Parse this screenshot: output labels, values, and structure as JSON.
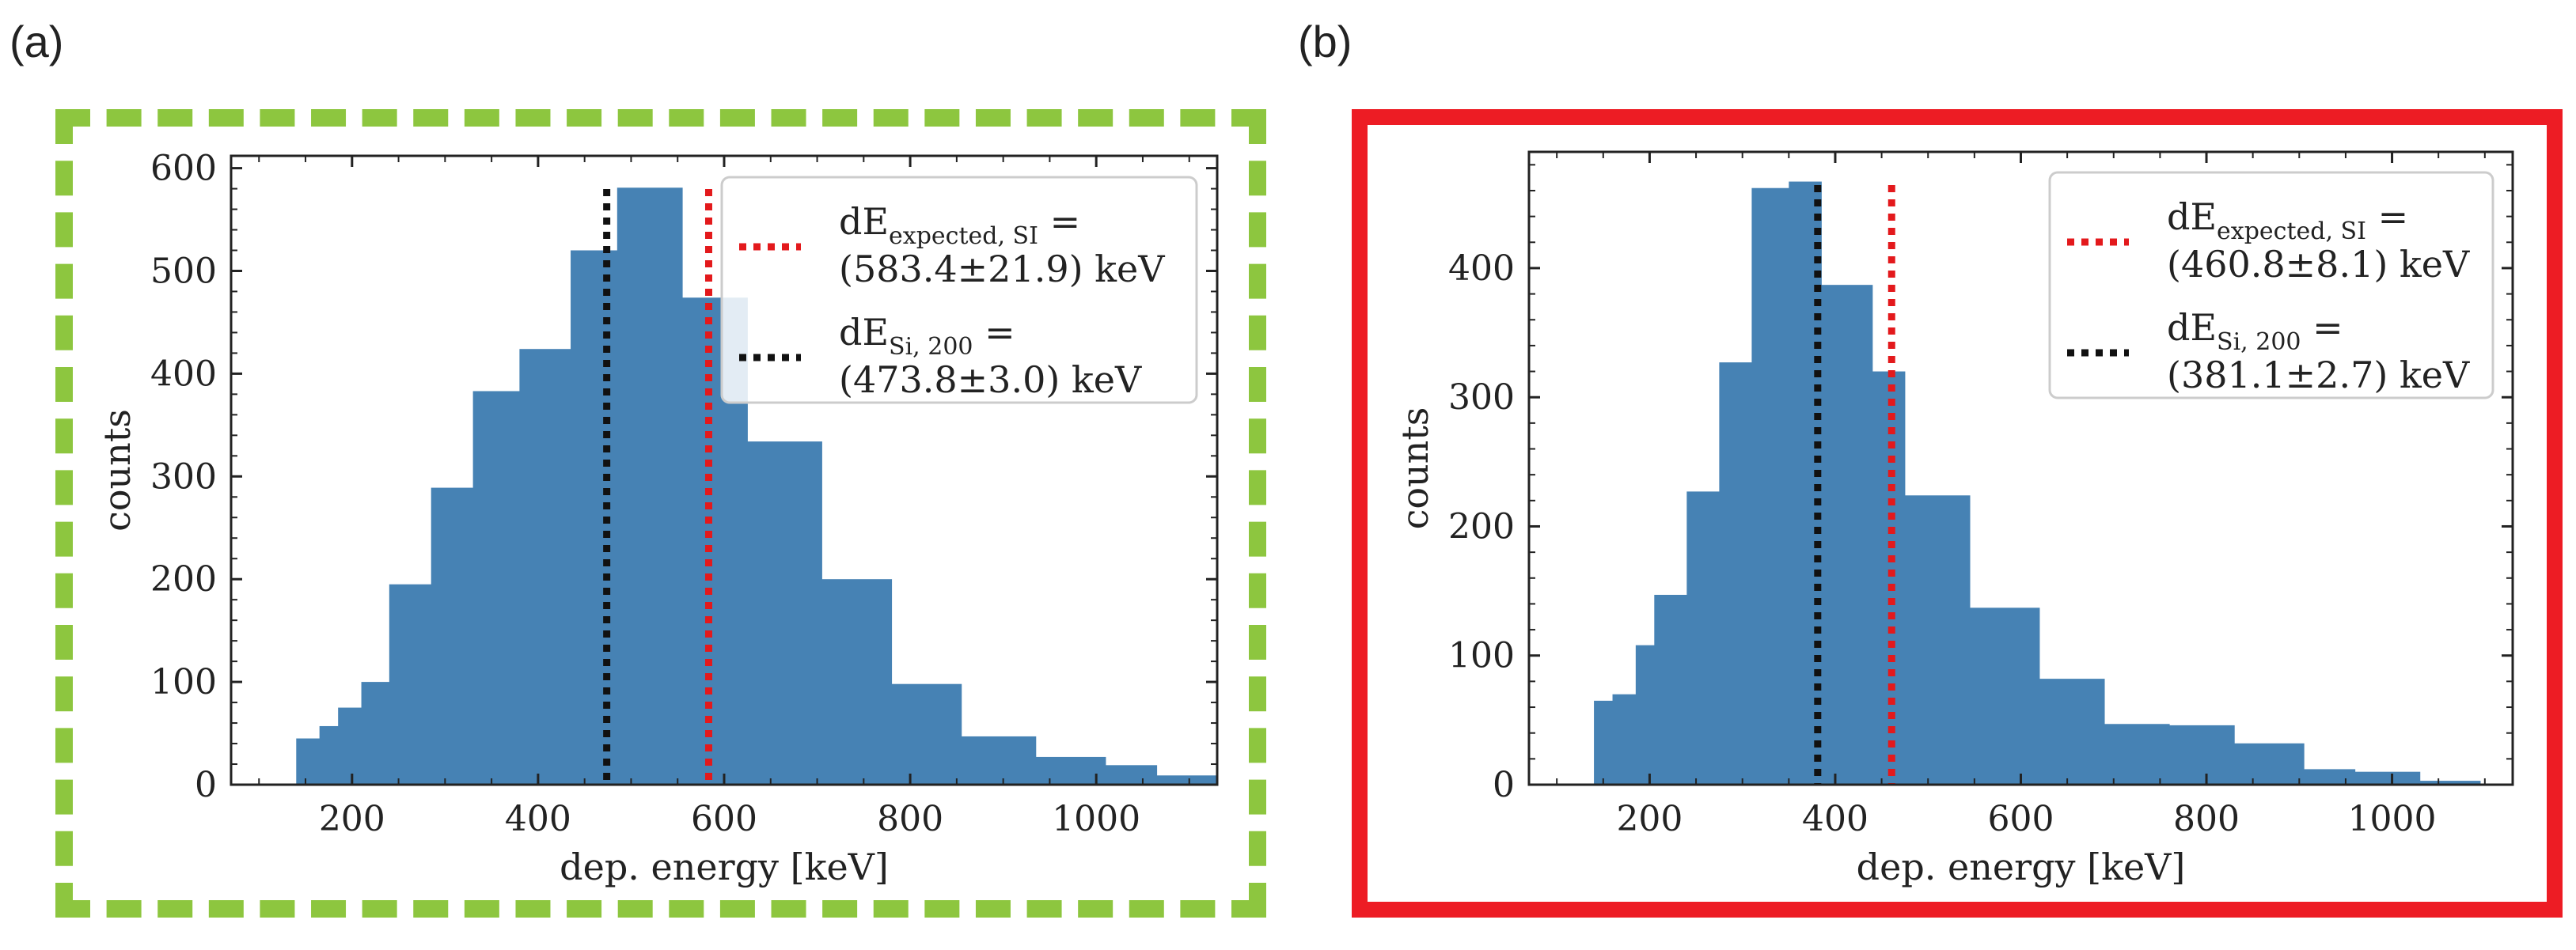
{
  "panels": [
    {
      "label": "(a)",
      "frame_color": "#8dc63f",
      "frame_style": "dashed"
    },
    {
      "label": "(b)",
      "frame_color": "#ed1c24",
      "frame_style": "solid"
    }
  ],
  "colors": {
    "bar": "#4682b4",
    "expected_line": "#e3191c",
    "si_line": "#111111"
  },
  "chart_data": [
    {
      "type": "bar",
      "xlabel": "dep. energy [keV]",
      "ylabel": "counts",
      "xlim": [
        70,
        1130
      ],
      "ylim": [
        0,
        612
      ],
      "xticks": [
        200,
        400,
        600,
        800,
        1000
      ],
      "yticks": [
        0,
        100,
        200,
        300,
        400,
        500,
        600
      ],
      "bins": [
        {
          "x0": 140,
          "x1": 165,
          "value": 45
        },
        {
          "x0": 165,
          "x1": 185,
          "value": 57
        },
        {
          "x0": 185,
          "x1": 210,
          "value": 75
        },
        {
          "x0": 210,
          "x1": 240,
          "value": 100
        },
        {
          "x0": 240,
          "x1": 285,
          "value": 195
        },
        {
          "x0": 285,
          "x1": 330,
          "value": 289
        },
        {
          "x0": 330,
          "x1": 380,
          "value": 383
        },
        {
          "x0": 380,
          "x1": 435,
          "value": 424
        },
        {
          "x0": 435,
          "x1": 485,
          "value": 520
        },
        {
          "x0": 485,
          "x1": 555,
          "value": 581
        },
        {
          "x0": 555,
          "x1": 625,
          "value": 474
        },
        {
          "x0": 625,
          "x1": 705,
          "value": 334
        },
        {
          "x0": 705,
          "x1": 780,
          "value": 200
        },
        {
          "x0": 780,
          "x1": 855,
          "value": 98
        },
        {
          "x0": 855,
          "x1": 935,
          "value": 47
        },
        {
          "x0": 935,
          "x1": 1010,
          "value": 27
        },
        {
          "x0": 1010,
          "x1": 1065,
          "value": 19
        },
        {
          "x0": 1065,
          "x1": 1130,
          "value": 9
        }
      ],
      "vlines": [
        {
          "key": "expected",
          "x": 583.4
        },
        {
          "key": "si",
          "x": 473.8
        }
      ],
      "legend": [
        {
          "key": "expected",
          "line1_main": "dE",
          "line1_sub": "expected, SI",
          "line1_tail": " =",
          "line2": "(583.4±21.9) keV"
        },
        {
          "key": "si",
          "line1_main": "dE",
          "line1_sub": "Si, 200",
          "line1_tail": " =",
          "line2": "(473.8±3.0) keV"
        }
      ]
    },
    {
      "type": "bar",
      "xlabel": "dep. energy [keV]",
      "ylabel": "counts",
      "xlim": [
        70,
        1130
      ],
      "ylim": [
        0,
        490
      ],
      "xticks": [
        200,
        400,
        600,
        800,
        1000
      ],
      "yticks": [
        0,
        100,
        200,
        300,
        400
      ],
      "bins": [
        {
          "x0": 140,
          "x1": 160,
          "value": 65
        },
        {
          "x0": 160,
          "x1": 185,
          "value": 70
        },
        {
          "x0": 185,
          "x1": 205,
          "value": 108
        },
        {
          "x0": 205,
          "x1": 240,
          "value": 147
        },
        {
          "x0": 240,
          "x1": 275,
          "value": 227
        },
        {
          "x0": 275,
          "x1": 310,
          "value": 327
        },
        {
          "x0": 310,
          "x1": 350,
          "value": 462
        },
        {
          "x0": 350,
          "x1": 385,
          "value": 467
        },
        {
          "x0": 385,
          "x1": 440,
          "value": 387
        },
        {
          "x0": 440,
          "x1": 475,
          "value": 320
        },
        {
          "x0": 475,
          "x1": 545,
          "value": 224
        },
        {
          "x0": 545,
          "x1": 620,
          "value": 137
        },
        {
          "x0": 620,
          "x1": 690,
          "value": 82
        },
        {
          "x0": 690,
          "x1": 760,
          "value": 47
        },
        {
          "x0": 760,
          "x1": 830,
          "value": 46
        },
        {
          "x0": 830,
          "x1": 905,
          "value": 32
        },
        {
          "x0": 905,
          "x1": 960,
          "value": 12
        },
        {
          "x0": 960,
          "x1": 1030,
          "value": 10
        },
        {
          "x0": 1030,
          "x1": 1095,
          "value": 3
        }
      ],
      "vlines": [
        {
          "key": "expected",
          "x": 460.8
        },
        {
          "key": "si",
          "x": 381.1
        }
      ],
      "legend": [
        {
          "key": "expected",
          "line1_main": "dE",
          "line1_sub": "expected, SI",
          "line1_tail": " =",
          "line2": "(460.8±8.1) keV"
        },
        {
          "key": "si",
          "line1_main": "dE",
          "line1_sub": "Si, 200",
          "line1_tail": " =",
          "line2": "(381.1±2.7) keV"
        }
      ]
    }
  ]
}
